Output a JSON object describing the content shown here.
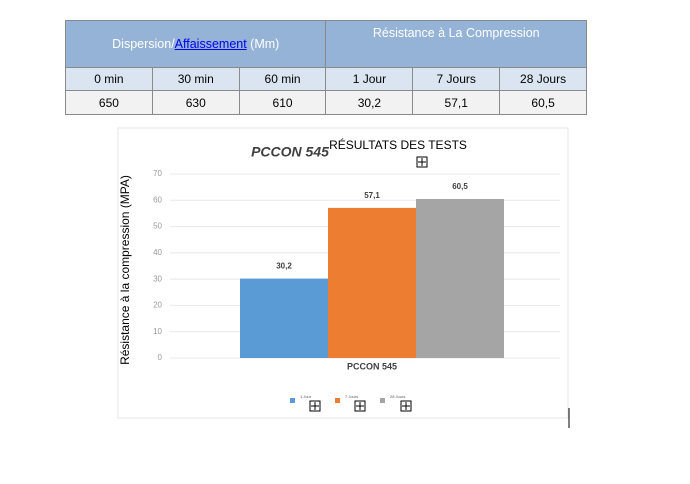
{
  "table": {
    "header": {
      "left_prefix": "Dispersion/",
      "left_link": "Affaissement",
      "left_suffix": " (Mm)",
      "right": "Résistance à La Compression"
    },
    "columns": [
      "0 min",
      "30 min",
      "60 min",
      "1  Jour",
      "7 Jours",
      "28 Jours"
    ],
    "rows": [
      [
        "650",
        "630",
        "610",
        "30,2",
        "57,1",
        "60,5"
      ]
    ]
  },
  "chart_data": {
    "type": "bar",
    "title": "PCCON 545",
    "subtitle": "RÉSULTATS DES TESTS",
    "y_label": "Résistance à la compression (MPA)",
    "categories": [
      "PCCON 545"
    ],
    "series": [
      {
        "name": "1 Jour",
        "color": "#5b9bd5",
        "values": [
          30.2
        ],
        "value_labels": [
          "30,2"
        ]
      },
      {
        "name": "7 Jours",
        "color": "#ed7d31",
        "values": [
          57.1
        ],
        "value_labels": [
          "57,1"
        ]
      },
      {
        "name": "28 Jours",
        "color": "#a5a5a5",
        "values": [
          60.5
        ],
        "value_labels": [
          "60,5"
        ]
      }
    ],
    "ylim": [
      0,
      70
    ],
    "yticks": [
      0,
      10,
      20,
      30,
      40,
      50,
      60,
      70
    ],
    "grid": true
  }
}
